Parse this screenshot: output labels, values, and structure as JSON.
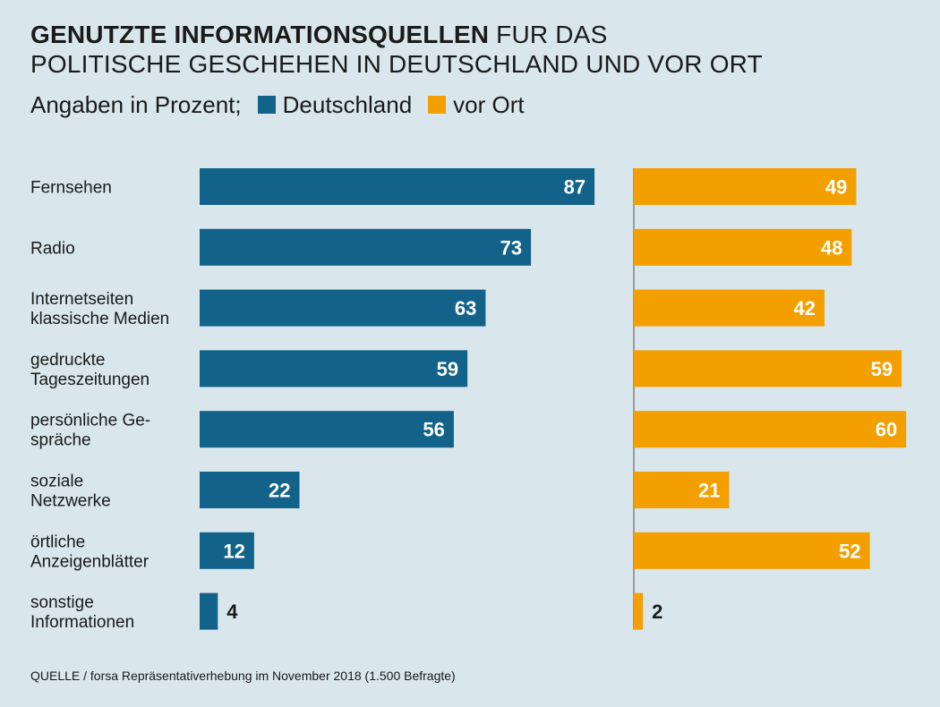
{
  "header": {
    "title_bold": "GENUTZTE INFORMATIONSQUELLEN",
    "title_rest_line1": "FUR DAS",
    "title_line2": "POLITISCHE GESCHEHEN IN DEUTSCHLAND UND VOR ORT",
    "subtitle": "Angaben in Prozent;"
  },
  "legend": [
    {
      "label": "Deutschland",
      "color": "#12628a"
    },
    {
      "label": "vor Ort",
      "color": "#f39f00"
    }
  ],
  "source": "QUELLE / forsa Repräsentativerhebung im November 2018 (1.500 Befragte)",
  "chart_data": {
    "type": "bar",
    "orientation": "horizontal",
    "title": "GENUTZTE INFORMATIONSQUELLEN FUR DAS POLITISCHE GESCHEHEN IN DEUTSCHLAND UND VOR ORT",
    "unit": "Prozent",
    "categories": [
      [
        "Fernsehen"
      ],
      [
        "Radio"
      ],
      [
        "Internetseiten",
        "klassische Medien"
      ],
      [
        "gedruckte",
        "Tageszeitungen"
      ],
      [
        "persönliche Ge-",
        "spräche"
      ],
      [
        "soziale",
        "Netzwerke"
      ],
      [
        "örtliche",
        "Anzeigenblätter"
      ],
      [
        "sonstige",
        "Informationen"
      ]
    ],
    "series": [
      {
        "name": "Deutschland",
        "color": "#12628a",
        "values": [
          87,
          73,
          63,
          59,
          56,
          22,
          12,
          4
        ]
      },
      {
        "name": "vor Ort",
        "color": "#f39f00",
        "values": [
          49,
          48,
          42,
          59,
          60,
          21,
          52,
          2
        ]
      }
    ],
    "xlim": [
      0,
      100
    ],
    "grid": false
  }
}
